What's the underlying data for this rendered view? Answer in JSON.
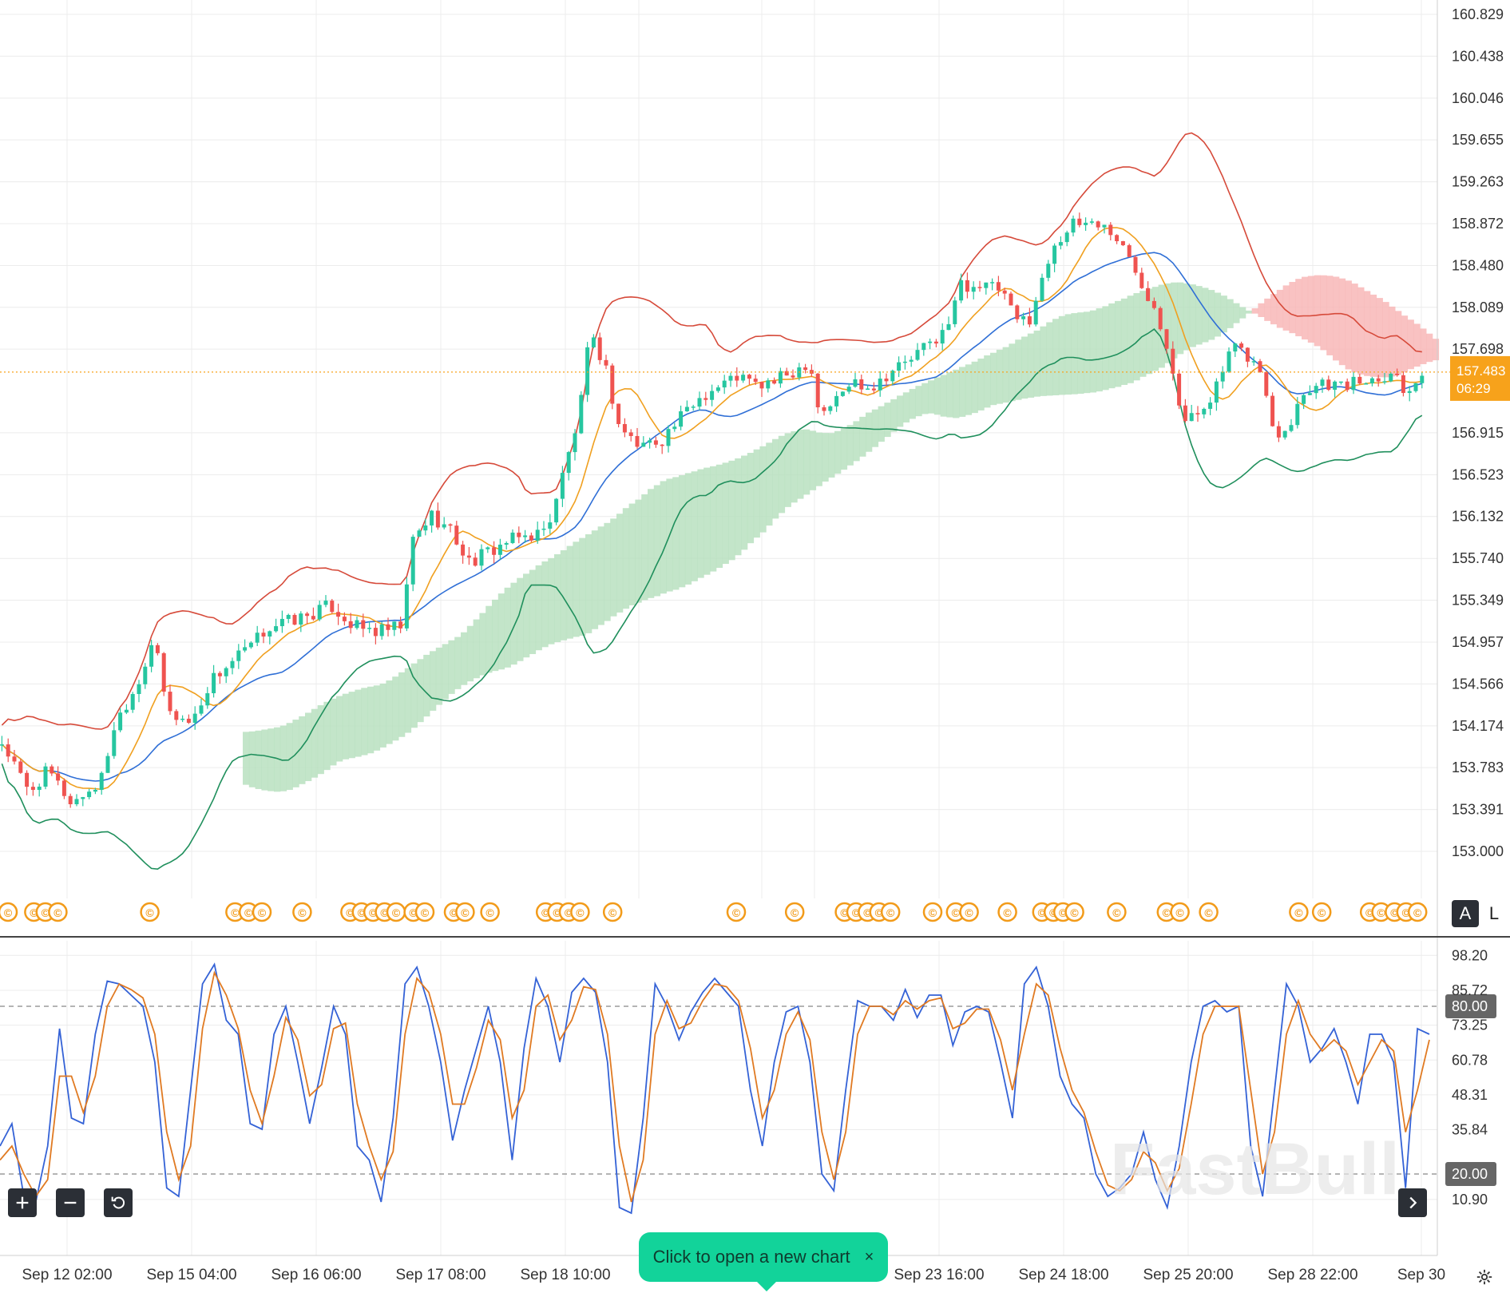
{
  "chart_data": [
    {
      "type": "candlestick",
      "title": "",
      "indicators": [
        "Bollinger Bands",
        "Ichimoku Cloud",
        "Moving Averages"
      ],
      "price_axis": {
        "ticks": [
          "160.829",
          "160.438",
          "160.046",
          "159.655",
          "159.263",
          "158.872",
          "158.480",
          "158.089",
          "157.698",
          "156.915",
          "156.523",
          "156.132",
          "155.740",
          "155.349",
          "154.957",
          "154.566",
          "154.174",
          "153.783",
          "153.391",
          "153.000"
        ],
        "ylim": [
          152.9,
          160.85
        ]
      },
      "time_axis": {
        "ticks": [
          "Sep 12 02:00",
          "Sep 15 04:00",
          "Sep 16 06:00",
          "Sep 17 08:00",
          "Sep 18 10:00",
          "Sep 23 16:00",
          "Sep 24 18:00",
          "Sep 25 20:00",
          "Sep 28 22:00",
          "Sep 30"
        ]
      },
      "current_price": "157.483",
      "countdown": "06:29",
      "price_path": [
        {
          "x": 0,
          "y": 154.05
        },
        {
          "x": 30,
          "y": 153.55
        },
        {
          "x": 50,
          "y": 153.75
        },
        {
          "x": 75,
          "y": 153.45
        },
        {
          "x": 105,
          "y": 153.65
        },
        {
          "x": 120,
          "y": 154.2
        },
        {
          "x": 145,
          "y": 154.6
        },
        {
          "x": 160,
          "y": 155.0
        },
        {
          "x": 175,
          "y": 154.3
        },
        {
          "x": 200,
          "y": 154.2
        },
        {
          "x": 220,
          "y": 154.6
        },
        {
          "x": 245,
          "y": 154.8
        },
        {
          "x": 260,
          "y": 154.9
        },
        {
          "x": 280,
          "y": 155.1
        },
        {
          "x": 300,
          "y": 155.15
        },
        {
          "x": 320,
          "y": 155.2
        },
        {
          "x": 345,
          "y": 155.3
        },
        {
          "x": 370,
          "y": 155.1
        },
        {
          "x": 395,
          "y": 155.05
        },
        {
          "x": 420,
          "y": 155.1
        },
        {
          "x": 430,
          "y": 155.9
        },
        {
          "x": 450,
          "y": 156.15
        },
        {
          "x": 470,
          "y": 156.0
        },
        {
          "x": 490,
          "y": 155.7
        },
        {
          "x": 510,
          "y": 155.8
        },
        {
          "x": 530,
          "y": 155.9
        },
        {
          "x": 550,
          "y": 155.95
        },
        {
          "x": 570,
          "y": 156.0
        },
        {
          "x": 590,
          "y": 156.6
        },
        {
          "x": 605,
          "y": 157.1
        },
        {
          "x": 615,
          "y": 157.8
        },
        {
          "x": 630,
          "y": 157.6
        },
        {
          "x": 645,
          "y": 157.0
        },
        {
          "x": 665,
          "y": 156.8
        },
        {
          "x": 690,
          "y": 156.85
        },
        {
          "x": 710,
          "y": 157.05
        },
        {
          "x": 730,
          "y": 157.25
        },
        {
          "x": 750,
          "y": 157.35
        },
        {
          "x": 770,
          "y": 157.45
        },
        {
          "x": 790,
          "y": 157.35
        },
        {
          "x": 810,
          "y": 157.4
        },
        {
          "x": 830,
          "y": 157.5
        },
        {
          "x": 845,
          "y": 157.6
        },
        {
          "x": 855,
          "y": 157.1
        },
        {
          "x": 870,
          "y": 157.2
        },
        {
          "x": 890,
          "y": 157.4
        },
        {
          "x": 910,
          "y": 157.35
        },
        {
          "x": 930,
          "y": 157.5
        },
        {
          "x": 950,
          "y": 157.6
        },
        {
          "x": 970,
          "y": 157.75
        },
        {
          "x": 990,
          "y": 157.9
        },
        {
          "x": 1000,
          "y": 158.3
        },
        {
          "x": 1020,
          "y": 158.3
        },
        {
          "x": 1045,
          "y": 158.25
        },
        {
          "x": 1060,
          "y": 157.95
        },
        {
          "x": 1075,
          "y": 158.0
        },
        {
          "x": 1090,
          "y": 158.4
        },
        {
          "x": 1100,
          "y": 158.7
        },
        {
          "x": 1120,
          "y": 158.85
        },
        {
          "x": 1140,
          "y": 158.9
        },
        {
          "x": 1160,
          "y": 158.8
        },
        {
          "x": 1175,
          "y": 158.6
        },
        {
          "x": 1190,
          "y": 158.35
        },
        {
          "x": 1205,
          "y": 158.1
        },
        {
          "x": 1220,
          "y": 157.7
        },
        {
          "x": 1235,
          "y": 157.0
        },
        {
          "x": 1250,
          "y": 157.1
        },
        {
          "x": 1270,
          "y": 157.35
        },
        {
          "x": 1285,
          "y": 157.7
        },
        {
          "x": 1300,
          "y": 157.65
        },
        {
          "x": 1315,
          "y": 157.5
        },
        {
          "x": 1330,
          "y": 156.9
        },
        {
          "x": 1345,
          "y": 157.0
        },
        {
          "x": 1360,
          "y": 157.3
        },
        {
          "x": 1380,
          "y": 157.4
        },
        {
          "x": 1400,
          "y": 157.35
        },
        {
          "x": 1420,
          "y": 157.4
        },
        {
          "x": 1440,
          "y": 157.45
        },
        {
          "x": 1455,
          "y": 157.5
        },
        {
          "x": 1465,
          "y": 157.3
        },
        {
          "x": 1480,
          "y": 157.45
        },
        {
          "x": 1490,
          "y": 157.48
        }
      ],
      "event_markers": [
        5,
        32,
        44,
        57,
        153,
        242,
        256,
        270,
        312,
        362,
        374,
        386,
        398,
        410,
        428,
        440,
        470,
        482,
        508,
        566,
        578,
        590,
        602,
        636,
        765,
        826,
        878,
        890,
        902,
        914,
        926,
        970,
        994,
        1008,
        1048,
        1084,
        1096,
        1106,
        1118,
        1162,
        1214,
        1228,
        1258,
        1352,
        1376,
        1426,
        1438,
        1452,
        1464,
        1476
      ],
      "buttons": {
        "auto": "A",
        "log": "L"
      }
    },
    {
      "type": "line",
      "title": "",
      "ylim": [
        4,
        100
      ],
      "y_ticks": [
        "98.20",
        "85.72",
        "73.25",
        "60.78",
        "48.31",
        "35.84",
        "10.90"
      ],
      "levels": {
        "upper": "80.00",
        "lower": "20.00"
      },
      "series": [
        {
          "color": "#3462d6",
          "values": [
            30,
            38,
            12,
            10,
            30,
            72,
            40,
            38,
            70,
            89,
            88,
            84,
            80,
            60,
            15,
            12,
            50,
            88,
            95,
            75,
            70,
            38,
            36,
            70,
            80,
            60,
            38,
            58,
            80,
            70,
            30,
            25,
            10,
            40,
            88,
            94,
            80,
            60,
            32,
            50,
            65,
            80,
            60,
            25,
            65,
            90,
            80,
            60,
            85,
            90,
            85,
            60,
            8,
            6,
            40,
            88,
            80,
            68,
            78,
            85,
            90,
            85,
            80,
            50,
            30,
            60,
            78,
            80,
            60,
            20,
            14,
            50,
            82,
            80,
            80,
            75,
            86,
            76,
            84,
            84,
            66,
            78,
            80,
            78,
            60,
            40,
            88,
            94,
            80,
            55,
            45,
            40,
            20,
            12,
            15,
            20,
            35,
            18,
            8,
            30,
            60,
            80,
            82,
            78,
            80,
            30,
            12,
            50,
            88,
            80,
            60,
            65,
            72,
            60,
            45,
            70,
            70,
            60,
            15,
            72,
            70
          ]
        },
        {
          "color": "#e07a22",
          "values": [
            25,
            30,
            20,
            12,
            18,
            55,
            55,
            42,
            55,
            80,
            88,
            86,
            83,
            70,
            35,
            18,
            30,
            72,
            92,
            84,
            72,
            50,
            38,
            55,
            76,
            68,
            48,
            52,
            72,
            74,
            45,
            30,
            18,
            28,
            70,
            90,
            85,
            70,
            45,
            45,
            58,
            75,
            68,
            40,
            50,
            80,
            84,
            68,
            75,
            87,
            86,
            70,
            30,
            10,
            25,
            70,
            82,
            72,
            74,
            82,
            88,
            87,
            82,
            65,
            40,
            50,
            70,
            78,
            68,
            35,
            18,
            35,
            70,
            80,
            80,
            77,
            82,
            79,
            82,
            83,
            72,
            74,
            79,
            79,
            68,
            50,
            70,
            88,
            84,
            65,
            50,
            42,
            28,
            16,
            14,
            18,
            28,
            24,
            14,
            22,
            45,
            70,
            80,
            80,
            80,
            50,
            20,
            35,
            70,
            82,
            70,
            64,
            68,
            64,
            52,
            60,
            68,
            64,
            35,
            50,
            68
          ]
        }
      ]
    }
  ],
  "watermark": "FastBull",
  "toast": {
    "text": "Click to open a new chart",
    "close": "×"
  },
  "colors": {
    "bull": "#26c6a0",
    "bear": "#ef5350",
    "price_tag": "#f7a21b",
    "stoch_k": "#3462d6",
    "stoch_d": "#e07a22",
    "cloud_bear": "#f8b7b7",
    "cloud_bull": "#b9e0c0",
    "marker": "#f29b1a"
  },
  "icons": [
    "zoom-in-icon",
    "zoom-out-icon",
    "reset-icon",
    "scroll-right-icon",
    "settings-icon"
  ]
}
